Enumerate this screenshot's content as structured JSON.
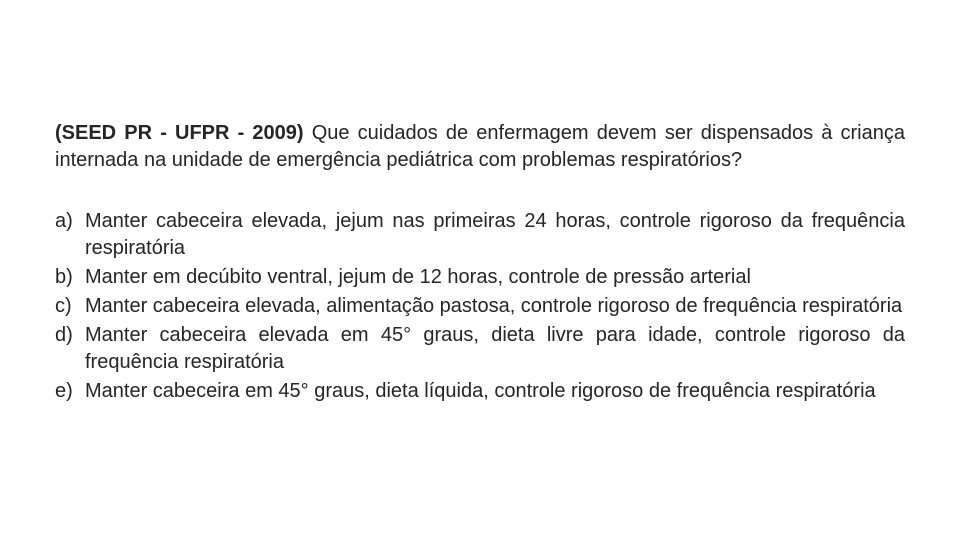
{
  "background_color": "#ffffff",
  "text_color": "#252525",
  "font_family": "Arial",
  "font_size_pt": 15,
  "question": {
    "source": "(SEED PR - UFPR - 2009)",
    "text": "Que cuidados de enfermagem devem ser dispensados à criança internada na unidade de emergência pediátrica com problemas respiratórios?"
  },
  "options": [
    {
      "letter": "a)",
      "text": "Manter cabeceira elevada, jejum nas primeiras 24 horas, controle rigoroso da frequência respiratória"
    },
    {
      "letter": "b)",
      "text": "Manter em decúbito ventral, jejum de 12 horas, controle de pressão arterial"
    },
    {
      "letter": "c)",
      "text": "Manter cabeceira elevada, alimentação pastosa, controle rigoroso de frequência respiratória"
    },
    {
      "letter": "d)",
      "text": "Manter cabeceira elevada em 45° graus, dieta livre para idade, controle rigoroso da frequência respiratória"
    },
    {
      "letter": "e)",
      "text": "Manter cabeceira em 45° graus, dieta líquida, controle rigoroso de frequência respiratória"
    }
  ]
}
